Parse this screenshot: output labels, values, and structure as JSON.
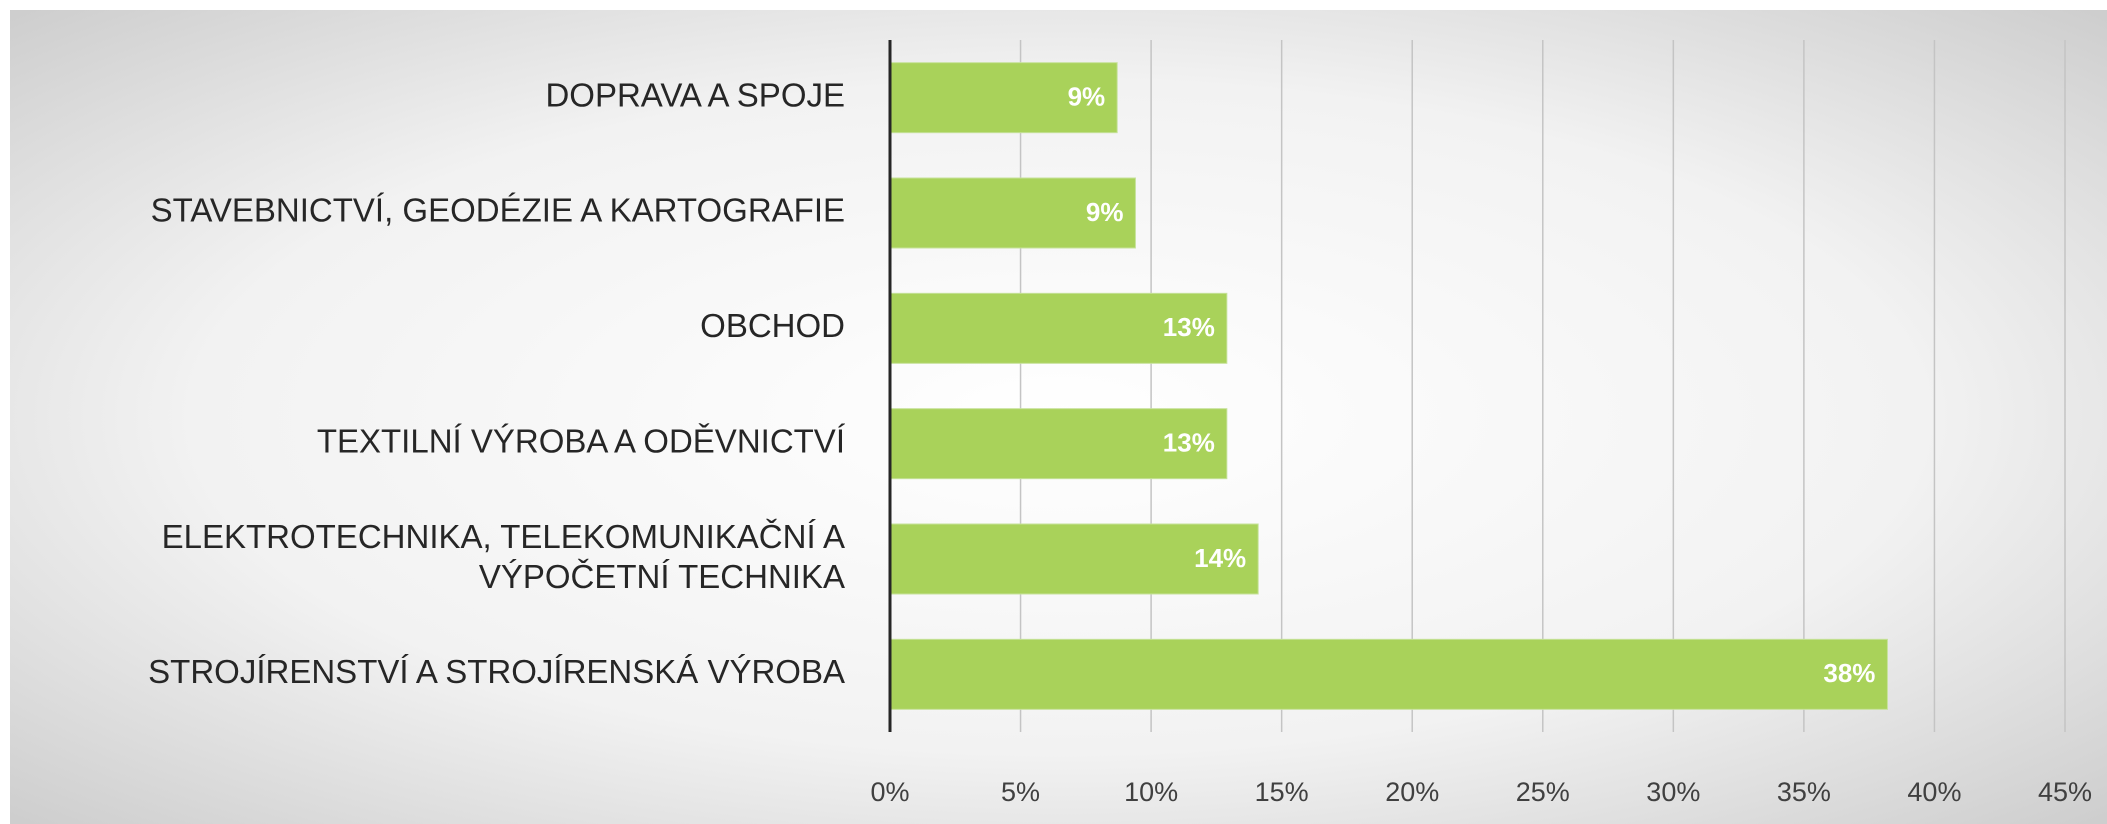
{
  "chart_data": {
    "type": "barh",
    "categories": [
      "DOPRAVA A SPOJE",
      "STAVEBNICTVÍ, GEODÉZIE A KARTOGRAFIE",
      "OBCHOD",
      "TEXTILNÍ VÝROBA A ODĚVNICTVÍ",
      "ELEKTROTECHNIKA, TELEKOMUNIKAČNÍ A VÝPOČETNÍ TECHNIKA",
      "STROJÍRENSTVÍ A STROJÍRENSKÁ VÝROBA"
    ],
    "values": [
      8.7,
      9.4,
      12.9,
      12.9,
      14.1,
      38.2
    ],
    "value_labels": [
      "9%",
      "9%",
      "13%",
      "13%",
      "14%",
      "38%"
    ],
    "color": "#a9d25a",
    "xlim": [
      0,
      45
    ],
    "xticks": [
      {
        "value": 0,
        "label": "0%"
      },
      {
        "value": 5,
        "label": "5%"
      },
      {
        "value": 10,
        "label": "10%"
      },
      {
        "value": 15,
        "label": "15%"
      },
      {
        "value": 20,
        "label": "20%"
      },
      {
        "value": 25,
        "label": "25%"
      },
      {
        "value": 30,
        "label": "30%"
      },
      {
        "value": 35,
        "label": "35%"
      },
      {
        "value": 40,
        "label": "40%"
      },
      {
        "value": 45,
        "label": "45%"
      }
    ],
    "grid": true
  }
}
